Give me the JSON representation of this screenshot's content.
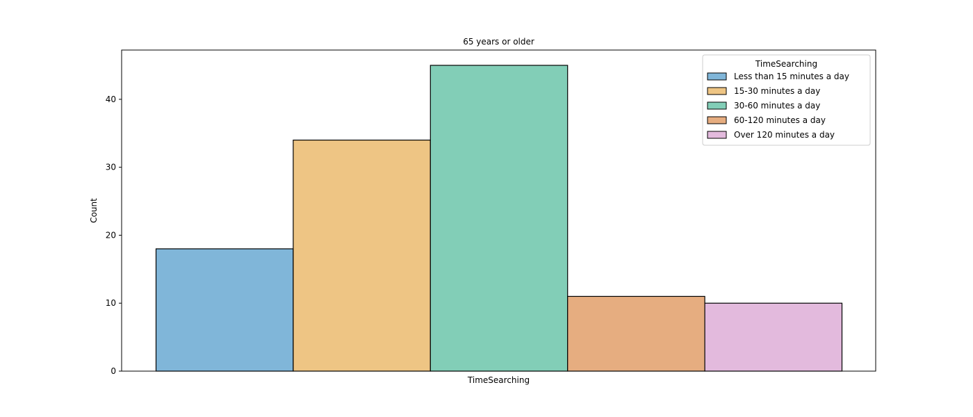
{
  "chart_data": {
    "type": "bar",
    "title": "65 years or older",
    "xlabel": "TimeSearching",
    "ylabel": "Count",
    "ylim": [
      0,
      47.25
    ],
    "yticks": [
      0,
      10,
      20,
      30,
      40
    ],
    "grid": false,
    "legend": {
      "title": "TimeSearching",
      "placement": "top-right"
    },
    "categories": [
      "Less than 15 minutes a day",
      "15-30 minutes a day",
      "30-60 minutes a day",
      "60-120 minutes a day",
      "Over 120 minutes a day"
    ],
    "values": [
      18,
      34,
      45,
      11,
      10
    ],
    "colors": [
      "#80b6d9",
      "#eec584",
      "#82ceb7",
      "#e6ad80",
      "#e3badd"
    ]
  }
}
